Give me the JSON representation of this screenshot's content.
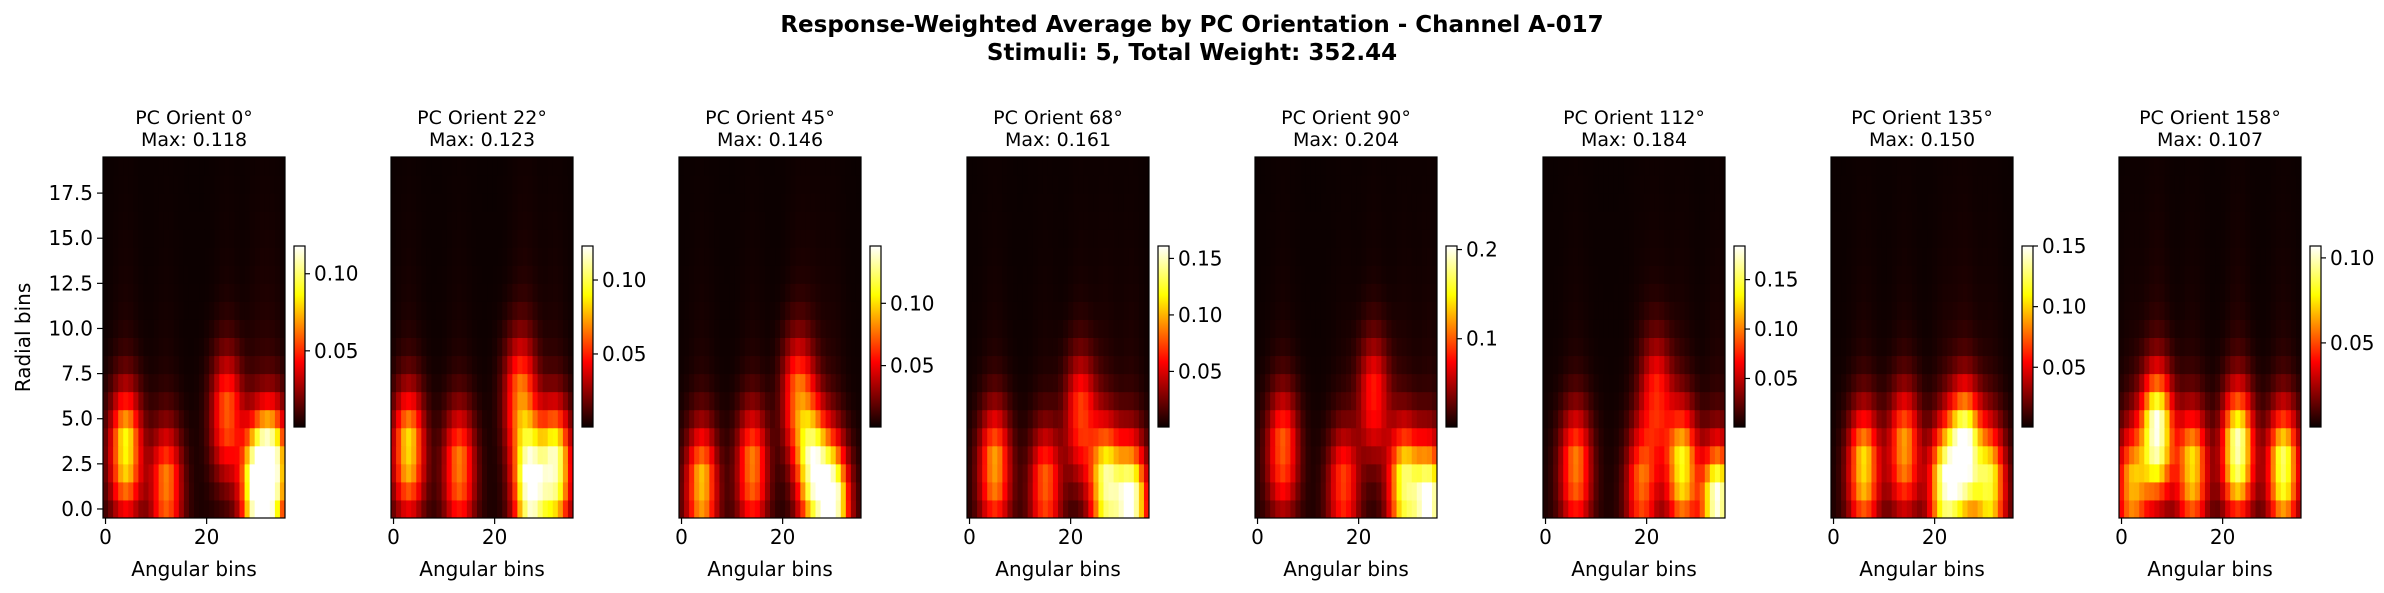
{
  "chart_data": {
    "type": "heatmap",
    "title": "Response-Weighted Average by PC Orientation - Channel A-017",
    "subtitle": "Stimuli: 5, Total Weight: 352.44",
    "xlabel": "Angular bins",
    "ylabel": "Radial bins",
    "colormap": "hot",
    "grid_shape": {
      "angular_bins": 36,
      "radial_bins": 20
    },
    "xticks": [
      "0",
      "20"
    ],
    "yticks": [
      "0.0",
      "2.5",
      "5.0",
      "7.5",
      "10.0",
      "12.5",
      "15.0",
      "17.5"
    ],
    "panels": [
      {
        "title": "PC Orient 0°",
        "max_label": "Max: 0.118",
        "max": 0.118,
        "colorbar_ticks": [
          "0.05",
          "0.10"
        ],
        "colorbar_values": [
          0.05,
          0.1
        ],
        "peaks": [
          [
            30,
            1,
            1.0
          ],
          [
            33,
            2,
            0.9
          ],
          [
            4,
            3,
            0.75
          ],
          [
            12,
            1,
            0.55
          ],
          [
            24,
            5,
            0.5
          ]
        ]
      },
      {
        "title": "PC Orient 22°",
        "max_label": "Max: 0.123",
        "max": 0.123,
        "colorbar_ticks": [
          "0.05",
          "0.10"
        ],
        "colorbar_values": [
          0.05,
          0.1
        ],
        "peaks": [
          [
            27,
            1,
            1.0
          ],
          [
            32,
            2,
            0.9
          ],
          [
            3,
            3,
            0.7
          ],
          [
            13,
            2,
            0.55
          ],
          [
            25,
            6,
            0.5
          ]
        ]
      },
      {
        "title": "PC Orient 45°",
        "max_label": "Max: 0.146",
        "max": 0.146,
        "colorbar_ticks": [
          "0.05",
          "0.10"
        ],
        "colorbar_values": [
          0.05,
          0.1
        ],
        "peaks": [
          [
            30,
            0,
            1.0
          ],
          [
            26,
            2,
            0.85
          ],
          [
            4,
            1,
            0.65
          ],
          [
            14,
            2,
            0.55
          ],
          [
            23,
            6,
            0.5
          ]
        ]
      },
      {
        "title": "PC Orient 68°",
        "max_label": "Max: 0.161",
        "max": 0.161,
        "colorbar_ticks": [
          "0.05",
          "0.10",
          "0.15"
        ],
        "colorbar_values": [
          0.05,
          0.1,
          0.15
        ],
        "peaks": [
          [
            32,
            0,
            1.0
          ],
          [
            27,
            1,
            0.85
          ],
          [
            5,
            2,
            0.6
          ],
          [
            15,
            1,
            0.5
          ],
          [
            22,
            5,
            0.45
          ]
        ]
      },
      {
        "title": "PC Orient 90°",
        "max_label": "Max: 0.204",
        "max": 0.204,
        "colorbar_ticks": [
          "0.1",
          "0.2"
        ],
        "colorbar_values": [
          0.1,
          0.2
        ],
        "peaks": [
          [
            34,
            0,
            1.0
          ],
          [
            29,
            1,
            0.8
          ],
          [
            5,
            3,
            0.5
          ],
          [
            17,
            1,
            0.45
          ],
          [
            23,
            6,
            0.4
          ]
        ]
      },
      {
        "title": "PC Orient 112°",
        "max_label": "Max: 0.184",
        "max": 0.184,
        "colorbar_ticks": [
          "0.05",
          "0.10",
          "0.15"
        ],
        "colorbar_values": [
          0.05,
          0.1,
          0.15
        ],
        "peaks": [
          [
            34,
            0,
            1.0
          ],
          [
            27,
            2,
            0.75
          ],
          [
            6,
            2,
            0.55
          ],
          [
            19,
            1,
            0.5
          ],
          [
            22,
            6,
            0.4
          ]
        ]
      },
      {
        "title": "PC Orient 135°",
        "max_label": "Max: 0.150",
        "max": 0.15,
        "colorbar_ticks": [
          "0.05",
          "0.10",
          "0.15"
        ],
        "colorbar_values": [
          0.05,
          0.1,
          0.15
        ],
        "peaks": [
          [
            26,
            3,
            1.0
          ],
          [
            22,
            1,
            0.85
          ],
          [
            6,
            2,
            0.7
          ],
          [
            14,
            3,
            0.6
          ],
          [
            31,
            1,
            0.75
          ]
        ]
      },
      {
        "title": "PC Orient 158°",
        "max_label": "Max: 0.107",
        "max": 0.107,
        "colorbar_ticks": [
          "0.05",
          "0.10"
        ],
        "colorbar_values": [
          0.05,
          0.1
        ],
        "peaks": [
          [
            7,
            4,
            1.0
          ],
          [
            23,
            3,
            0.95
          ],
          [
            32,
            2,
            0.85
          ],
          [
            14,
            2,
            0.7
          ],
          [
            2,
            1,
            0.6
          ]
        ]
      }
    ]
  }
}
